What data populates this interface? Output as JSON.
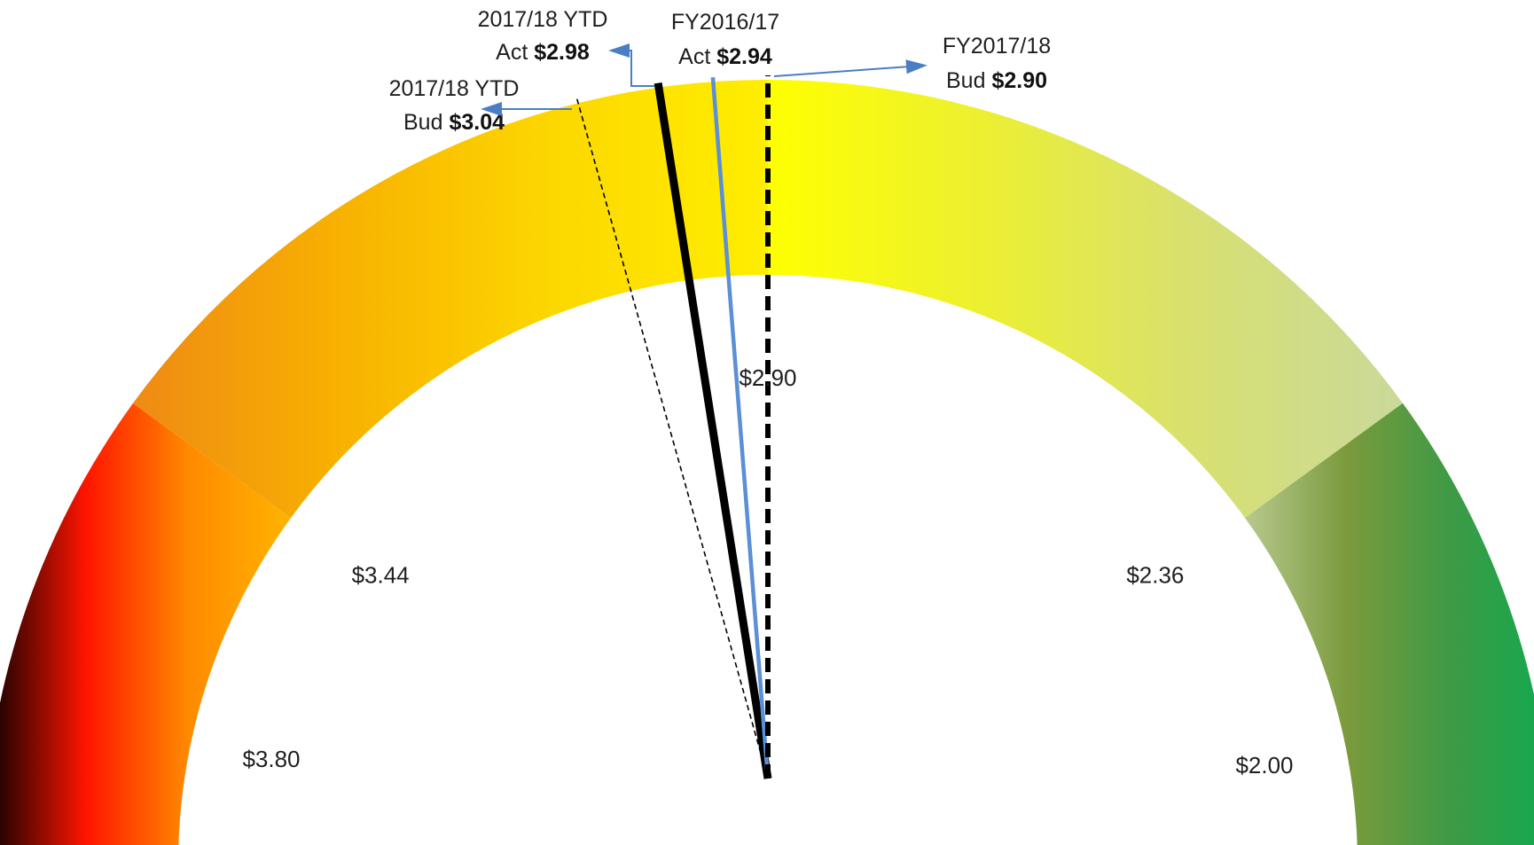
{
  "chart_data": {
    "type": "gauge",
    "scale_direction": "high-to-low (left = $3.80, right = $2.00)",
    "range": [
      2.0,
      3.8
    ],
    "scale_labels": [
      {
        "value": 3.8,
        "text": "$3.80"
      },
      {
        "value": 3.44,
        "text": "$3.44"
      },
      {
        "value": 2.9,
        "text": "$2.90"
      },
      {
        "value": 2.36,
        "text": "$2.36"
      },
      {
        "value": 2.0,
        "text": "$2.00"
      }
    ],
    "bands": [
      {
        "from": 3.8,
        "to": 3.44,
        "colors": [
          "#000000",
          "#ff1400",
          "#ff8a00",
          "#ffb400"
        ]
      },
      {
        "from": 3.44,
        "to": 2.9,
        "colors": [
          "#ef8a14",
          "#f8b200",
          "#fcd800",
          "#ffee00"
        ]
      },
      {
        "from": 2.9,
        "to": 2.36,
        "colors": [
          "#ffff00",
          "#ecf030",
          "#d8e070",
          "#c9d99a"
        ]
      },
      {
        "from": 2.36,
        "to": 2.0,
        "colors": [
          "#b8c98e",
          "#7a9a3c",
          "#3e9a45",
          "#10aa50"
        ]
      }
    ],
    "series": [
      {
        "name_lines": [
          "2017/18 YTD",
          "Bud"
        ],
        "value": 3.04,
        "value_text": "$3.04",
        "style": "thin-dashed",
        "color": "#000000",
        "label_side": "left"
      },
      {
        "name_lines": [
          "2017/18 YTD",
          "Act"
        ],
        "value": 2.98,
        "value_text": "$2.98",
        "style": "thick-solid",
        "color": "#000000",
        "label_side": "left"
      },
      {
        "name_lines": [
          "FY2016/17",
          "Act"
        ],
        "value": 2.94,
        "value_text": "$2.94",
        "style": "solid",
        "color": "#5b8fd6",
        "label_side": "center"
      },
      {
        "name_lines": [
          "FY2017/18",
          "Bud"
        ],
        "value": 2.9,
        "value_text": "$2.90",
        "style": "thick-dashed",
        "color": "#000000",
        "label_side": "right"
      }
    ],
    "arrow_color": "#4a7ec4",
    "title": "",
    "xlabel": "",
    "ylabel": ""
  }
}
